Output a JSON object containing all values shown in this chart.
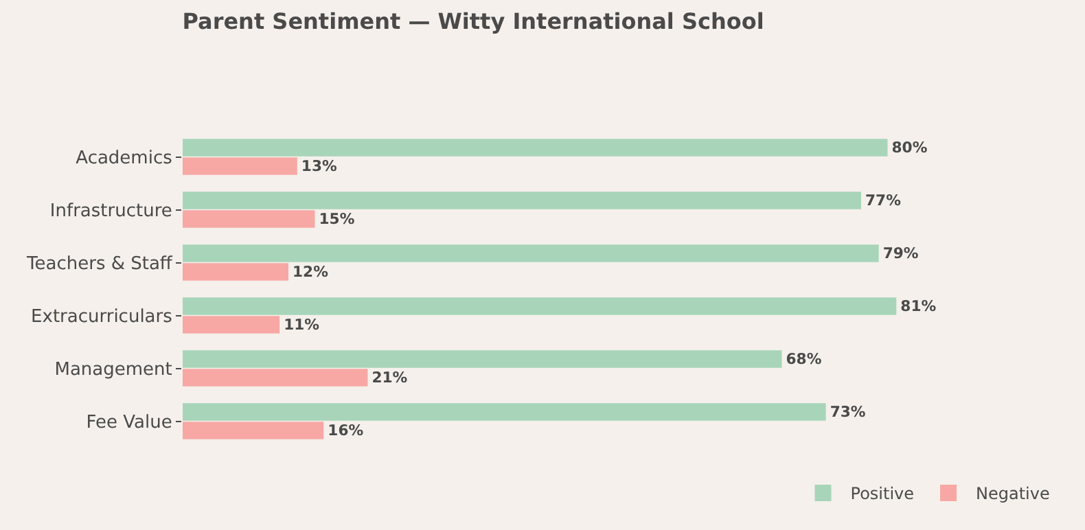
{
  "chart_data": {
    "type": "bar",
    "orientation": "horizontal",
    "title": "Parent Sentiment — Witty International School",
    "categories": [
      "Academics",
      "Infrastructure",
      "Teachers & Staff",
      "Extracurriculars",
      "Management",
      "Fee Value"
    ],
    "series": [
      {
        "name": "Positive",
        "color": "#a8d5ba",
        "values": [
          80,
          77,
          79,
          81,
          68,
          73
        ],
        "value_labels": [
          "80%",
          "77%",
          "79%",
          "81%",
          "68%",
          "73%"
        ]
      },
      {
        "name": "Negative",
        "color": "#f7a8a4",
        "values": [
          13,
          15,
          12,
          11,
          21,
          16
        ],
        "value_labels": [
          "13%",
          "15%",
          "12%",
          "11%",
          "21%",
          "16%"
        ]
      }
    ],
    "tick_labels": "y",
    "legend": "bottom right"
  }
}
